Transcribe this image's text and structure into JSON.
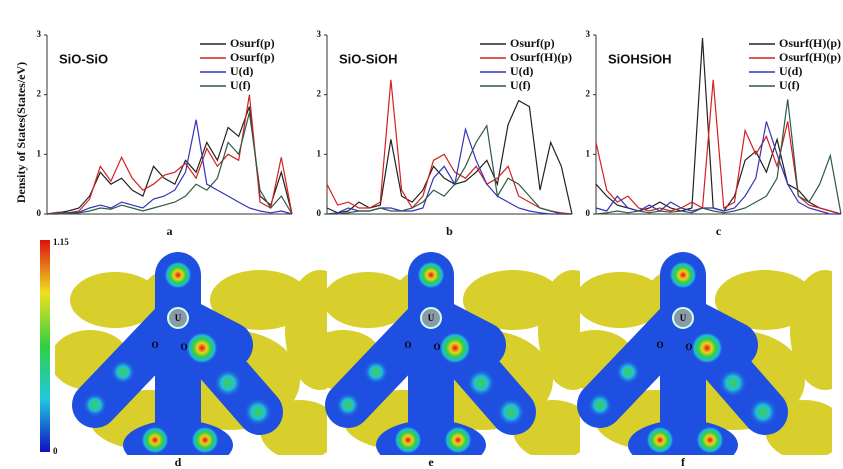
{
  "chart_data": [
    {
      "type": "line",
      "title": "SiO-SiO",
      "ylabel": "Density of States(States/eV)",
      "panel_label": "a",
      "ylim": [
        0,
        3
      ],
      "yticks": [
        0,
        1,
        2,
        3
      ],
      "series": [
        {
          "name": "Osurf(p)",
          "color": "#222222",
          "values": [
            0,
            0.02,
            0.05,
            0.1,
            0.3,
            0.7,
            0.5,
            0.6,
            0.4,
            0.3,
            0.8,
            0.6,
            0.5,
            0.9,
            0.7,
            1.2,
            0.9,
            1.45,
            1.3,
            1.8,
            0.3,
            0.15,
            0.7,
            0
          ]
        },
        {
          "name": "Osurf(p)",
          "color": "#d42020",
          "values": [
            0,
            0.03,
            0.02,
            0.05,
            0.25,
            0.8,
            0.55,
            0.95,
            0.6,
            0.4,
            0.5,
            0.65,
            0.7,
            0.85,
            0.6,
            1.1,
            0.8,
            1.0,
            0.9,
            2.0,
            0.2,
            0.1,
            0.95,
            0
          ]
        },
        {
          "name": "U(d)",
          "color": "#3333bb",
          "values": [
            0,
            0.01,
            0.02,
            0.03,
            0.1,
            0.15,
            0.1,
            0.2,
            0.15,
            0.1,
            0.25,
            0.3,
            0.4,
            0.7,
            1.58,
            0.5,
            0.4,
            0.3,
            0.2,
            0.1,
            0.05,
            0.02,
            0.05,
            0
          ]
        },
        {
          "name": "U(f)",
          "color": "#2f5a45",
          "values": [
            0,
            0,
            0.01,
            0.02,
            0.05,
            0.1,
            0.08,
            0.15,
            0.1,
            0.05,
            0.1,
            0.15,
            0.2,
            0.3,
            0.5,
            0.4,
            0.6,
            1.2,
            1.0,
            1.7,
            0.4,
            0.1,
            0.3,
            0
          ]
        }
      ]
    },
    {
      "type": "line",
      "title": "SiO-SiOH",
      "panel_label": "b",
      "ylim": [
        0,
        3
      ],
      "yticks": [
        0,
        1,
        2,
        3
      ],
      "series": [
        {
          "name": "Osurf(p)",
          "color": "#222222",
          "values": [
            0.1,
            0.02,
            0.05,
            0.2,
            0.1,
            0.15,
            1.25,
            0.3,
            0.2,
            0.4,
            0.8,
            0.6,
            0.5,
            0.55,
            0.7,
            0.9,
            0.5,
            1.5,
            1.9,
            1.8,
            0.4,
            1.2,
            0.8,
            0
          ]
        },
        {
          "name": "Osurf(H)(p)",
          "color": "#d42020",
          "values": [
            0.5,
            0.15,
            0.2,
            0.1,
            0.1,
            0.2,
            2.25,
            0.4,
            0.1,
            0.3,
            0.9,
            1.0,
            0.7,
            0.6,
            0.8,
            0.5,
            0.6,
            0.8,
            0.3,
            0.2,
            0.1,
            0.05,
            0.02,
            0
          ]
        },
        {
          "name": "U(d)",
          "color": "#3333bb",
          "values": [
            0,
            0.02,
            0.1,
            0.05,
            0.05,
            0.1,
            0.1,
            0.05,
            0.05,
            0.1,
            0.6,
            0.8,
            0.5,
            1.42,
            0.9,
            0.5,
            0.3,
            0.2,
            0.1,
            0.05,
            0.02,
            0,
            0,
            0
          ]
        },
        {
          "name": "U(f)",
          "color": "#2f5a45",
          "values": [
            0,
            0,
            0.02,
            0.05,
            0.05,
            0.1,
            0.05,
            0.05,
            0.1,
            0.2,
            0.4,
            0.3,
            0.5,
            0.8,
            1.2,
            1.48,
            0.3,
            0.6,
            0.5,
            0.3,
            0.1,
            0.05,
            0,
            0
          ]
        }
      ]
    },
    {
      "type": "line",
      "title": "SiOHSiOH",
      "panel_label": "c",
      "ylim": [
        0,
        3
      ],
      "yticks": [
        0,
        1,
        2,
        3
      ],
      "series": [
        {
          "name": "Osurf(H)(p)",
          "color": "#222222",
          "values": [
            0.5,
            0.3,
            0.15,
            0.1,
            0.05,
            0.1,
            0.2,
            0.1,
            0.05,
            0.1,
            2.95,
            0.1,
            0.05,
            0.3,
            0.9,
            1.05,
            0.7,
            1.25,
            0.5,
            0.4,
            0.2,
            0.1,
            0.05,
            0
          ]
        },
        {
          "name": "Osurf(H)(p)",
          "color": "#d42020",
          "values": [
            1.2,
            0.4,
            0.2,
            0.3,
            0.1,
            0.05,
            0.1,
            0.05,
            0.1,
            0.2,
            0.1,
            2.25,
            0.1,
            0.2,
            1.4,
            1.0,
            1.3,
            0.8,
            1.55,
            0.3,
            0.15,
            0.1,
            0.05,
            0
          ]
        },
        {
          "name": "U(d)",
          "color": "#3333bb",
          "values": [
            0.1,
            0.05,
            0.3,
            0.1,
            0.05,
            0.15,
            0.05,
            0.2,
            0.1,
            0.05,
            0.1,
            0.1,
            0.05,
            0.1,
            0.3,
            0.6,
            1.55,
            1.0,
            0.5,
            0.2,
            0.1,
            0.05,
            0,
            0
          ]
        },
        {
          "name": "U(f)",
          "color": "#2f5a45",
          "values": [
            0,
            0.02,
            0.05,
            0.02,
            0.05,
            0.02,
            0.05,
            0.03,
            0.05,
            0.02,
            0.1,
            0.05,
            0.02,
            0.05,
            0.1,
            0.2,
            0.3,
            0.6,
            1.92,
            0.3,
            0.2,
            0.5,
            0.98,
            0
          ]
        }
      ]
    }
  ],
  "colorbar": {
    "ticks": [
      "1.15",
      "0"
    ]
  },
  "images": [
    {
      "label": "d",
      "atoms": [
        "U",
        "O",
        "O"
      ]
    },
    {
      "label": "e",
      "atoms": [
        "U",
        "O",
        "O"
      ]
    },
    {
      "label": "f",
      "atoms": [
        "U",
        "O",
        "O"
      ]
    }
  ]
}
